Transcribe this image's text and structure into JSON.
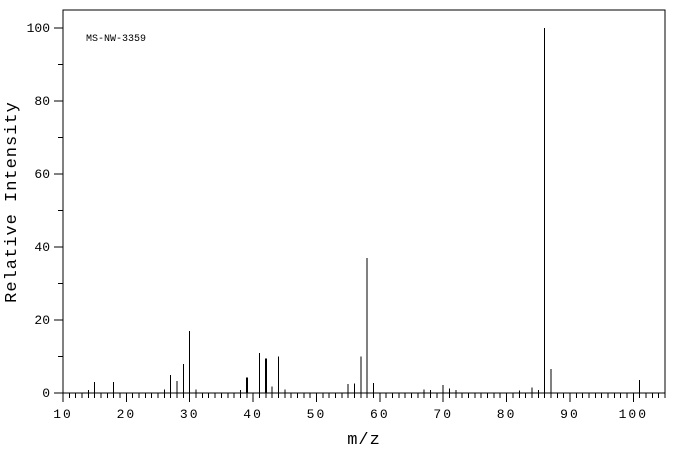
{
  "chart_data": {
    "type": "bar",
    "subtype": "mass-spectrum",
    "title": "",
    "annotation": "MS-NW-3359",
    "xlabel": "m/z",
    "ylabel": "Relative Intensity",
    "xlim": [
      10,
      105
    ],
    "ylim": [
      0,
      105
    ],
    "x_major_tick_step": 10,
    "x_minor_tick_step": 1,
    "x_tick_labels": [
      10,
      20,
      30,
      40,
      50,
      60,
      70,
      80,
      90,
      100
    ],
    "y_major_tick_step": 20,
    "y_minor_tick_step": 10,
    "y_tick_labels": [
      0,
      20,
      40,
      60,
      80,
      100
    ],
    "grid": "off",
    "legend": "none",
    "base_peak": {
      "mz": 86,
      "intensity": 100
    },
    "peaks": [
      {
        "mz": 14,
        "intensity": 0.8
      },
      {
        "mz": 15,
        "intensity": 3
      },
      {
        "mz": 18,
        "intensity": 3
      },
      {
        "mz": 26,
        "intensity": 1
      },
      {
        "mz": 27,
        "intensity": 5
      },
      {
        "mz": 28,
        "intensity": 3.3
      },
      {
        "mz": 29,
        "intensity": 8
      },
      {
        "mz": 30,
        "intensity": 17
      },
      {
        "mz": 31,
        "intensity": 1
      },
      {
        "mz": 38,
        "intensity": 0.8
      },
      {
        "mz": 39,
        "intensity": 4.2,
        "wide": true
      },
      {
        "mz": 41,
        "intensity": 11
      },
      {
        "mz": 42,
        "intensity": 9.5,
        "wide": true
      },
      {
        "mz": 43,
        "intensity": 1.8
      },
      {
        "mz": 44,
        "intensity": 10
      },
      {
        "mz": 45,
        "intensity": 1
      },
      {
        "mz": 55,
        "intensity": 2.5
      },
      {
        "mz": 56,
        "intensity": 2.6
      },
      {
        "mz": 57,
        "intensity": 10
      },
      {
        "mz": 58,
        "intensity": 37
      },
      {
        "mz": 59,
        "intensity": 2.7
      },
      {
        "mz": 67,
        "intensity": 1
      },
      {
        "mz": 68,
        "intensity": 0.8
      },
      {
        "mz": 70,
        "intensity": 2.2
      },
      {
        "mz": 71,
        "intensity": 1.3
      },
      {
        "mz": 72,
        "intensity": 0.8
      },
      {
        "mz": 82,
        "intensity": 0.7
      },
      {
        "mz": 84,
        "intensity": 1.5
      },
      {
        "mz": 85,
        "intensity": 0.8
      },
      {
        "mz": 86,
        "intensity": 100
      },
      {
        "mz": 87,
        "intensity": 6.6
      },
      {
        "mz": 101,
        "intensity": 3.5
      }
    ],
    "colors": {
      "line": "#000000",
      "text": "#000000",
      "background": "#ffffff"
    }
  }
}
